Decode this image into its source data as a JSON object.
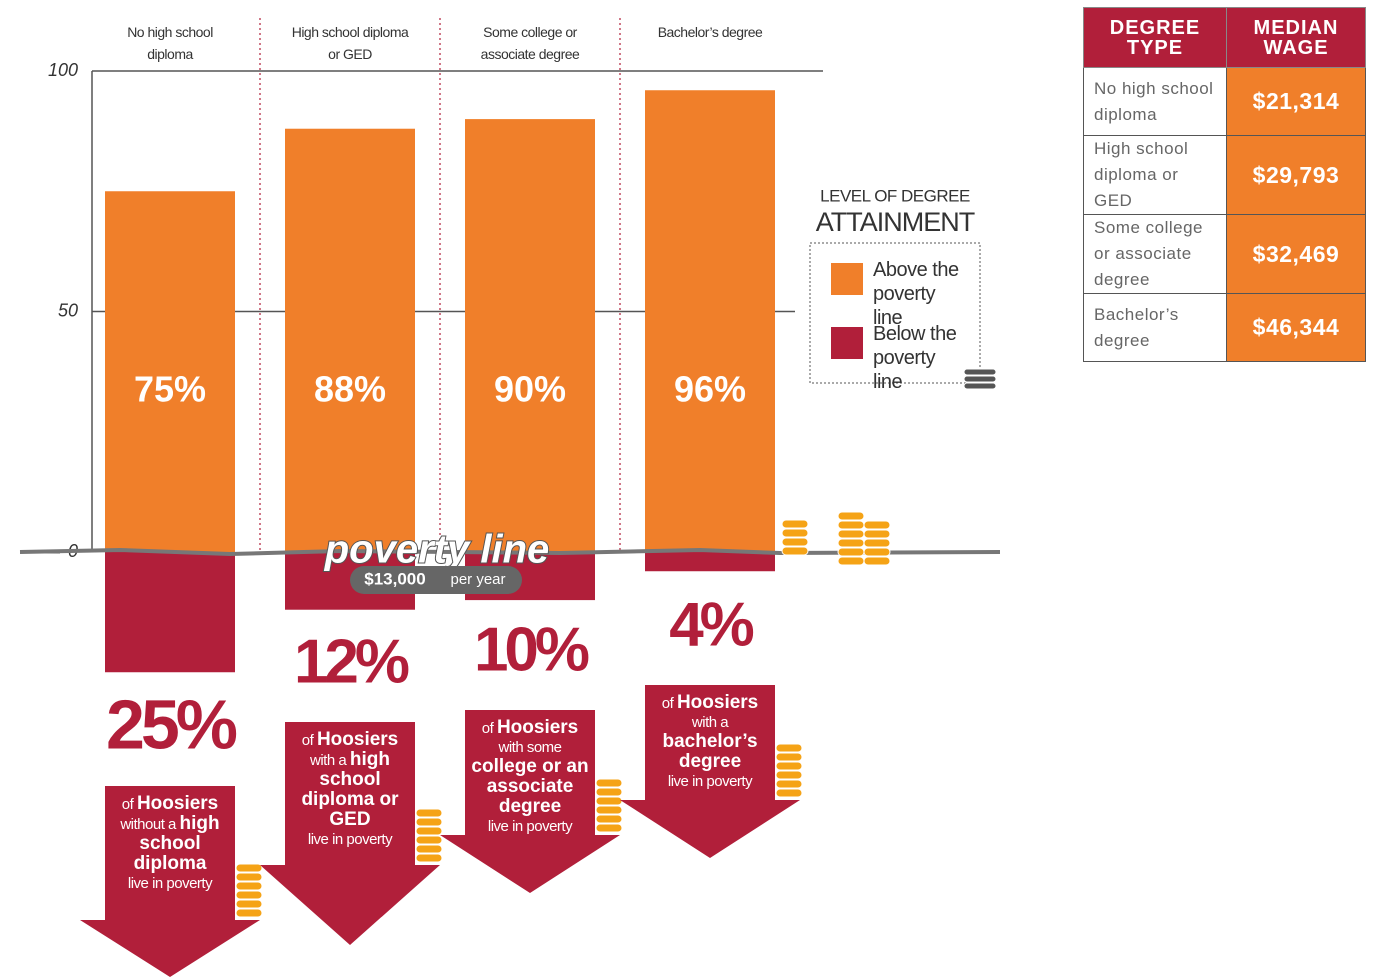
{
  "chart_data": {
    "type": "bar",
    "categories": [
      "No high school diploma",
      "High school diploma or GED",
      "Some college or associate degree",
      "Bachelor’s degree"
    ],
    "series": [
      {
        "name": "Above the poverty line",
        "color": "#f07f2a",
        "values": [
          75,
          88,
          90,
          96
        ],
        "value_labels": [
          "75%",
          "88%",
          "90%",
          "96%"
        ]
      },
      {
        "name": "Below the poverty line",
        "color": "#b11f3a",
        "values": [
          25,
          12,
          10,
          4
        ],
        "value_labels": [
          "25%",
          "12%",
          "10%",
          "4%"
        ]
      }
    ],
    "ylim": [
      0,
      100
    ],
    "yticks": [
      0,
      50,
      100
    ],
    "grid": true,
    "legend_title": [
      "LEVEL OF DEGREE",
      "ATTAINMENT"
    ],
    "poverty_line": {
      "label": "poverty line",
      "amount": "$13,000",
      "period": "per year"
    },
    "callouts": [
      [
        {
          "text": "of",
          "weight": "normal"
        },
        {
          "text": "Hoosiers",
          "weight": "bold"
        },
        {
          "text": "without a",
          "weight": "normal"
        },
        {
          "text": "high school diploma",
          "weight": "bold"
        },
        {
          "text": "live in poverty",
          "weight": "normal"
        }
      ],
      [
        {
          "text": "of",
          "weight": "normal"
        },
        {
          "text": "Hoosiers",
          "weight": "bold"
        },
        {
          "text": "with a",
          "weight": "normal"
        },
        {
          "text": "high school diploma or GED",
          "weight": "bold"
        },
        {
          "text": "live in poverty",
          "weight": "normal"
        }
      ],
      [
        {
          "text": "of",
          "weight": "normal"
        },
        {
          "text": "Hoosiers",
          "weight": "bold"
        },
        {
          "text": "with some",
          "weight": "normal"
        },
        {
          "text": "college or an associate degree",
          "weight": "bold"
        },
        {
          "text": "live in poverty",
          "weight": "normal"
        }
      ],
      [
        {
          "text": "of",
          "weight": "normal"
        },
        {
          "text": "Hoosiers",
          "weight": "bold"
        },
        {
          "text": "with a",
          "weight": "normal"
        },
        {
          "text": "bachelor’s degree",
          "weight": "bold"
        },
        {
          "text": "live in poverty",
          "weight": "normal"
        }
      ]
    ]
  },
  "table": {
    "header": [
      "DEGREE TYPE",
      "MEDIAN WAGE"
    ],
    "rows": [
      [
        "No high school diploma",
        "$21,314"
      ],
      [
        "High school diploma or GED",
        "$29,793"
      ],
      [
        "Some college or associate degree",
        "$32,469"
      ],
      [
        "Bachelor’s degree",
        "$46,344"
      ]
    ]
  }
}
